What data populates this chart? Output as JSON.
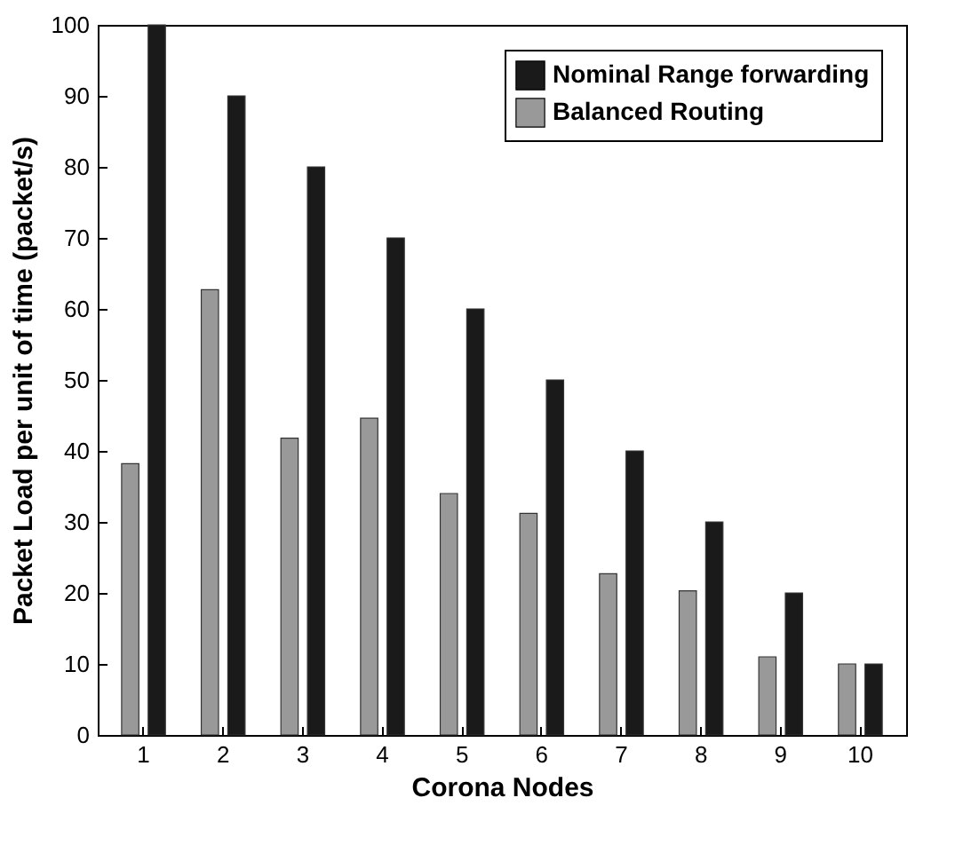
{
  "chart_data": {
    "type": "bar",
    "xlabel": "Corona Nodes",
    "ylabel": "Packet Load per unit of time (packet/s)",
    "categories": [
      "1",
      "2",
      "3",
      "4",
      "5",
      "6",
      "7",
      "8",
      "9",
      "10"
    ],
    "series": [
      {
        "name": "Nominal Range forwarding",
        "color": "#1a1a1a",
        "values": [
          100,
          90,
          80,
          70,
          60,
          50,
          40,
          30,
          20,
          10
        ]
      },
      {
        "name": "Balanced Routing",
        "color": "#999999",
        "values": [
          38.2,
          62.7,
          41.8,
          44.6,
          34,
          31.2,
          22.7,
          20.3,
          11,
          10
        ]
      }
    ],
    "ylim": [
      0,
      100
    ],
    "yticks": [
      0,
      10,
      20,
      30,
      40,
      50,
      60,
      70,
      80,
      90,
      100
    ],
    "grid": false,
    "legend": "top right"
  }
}
